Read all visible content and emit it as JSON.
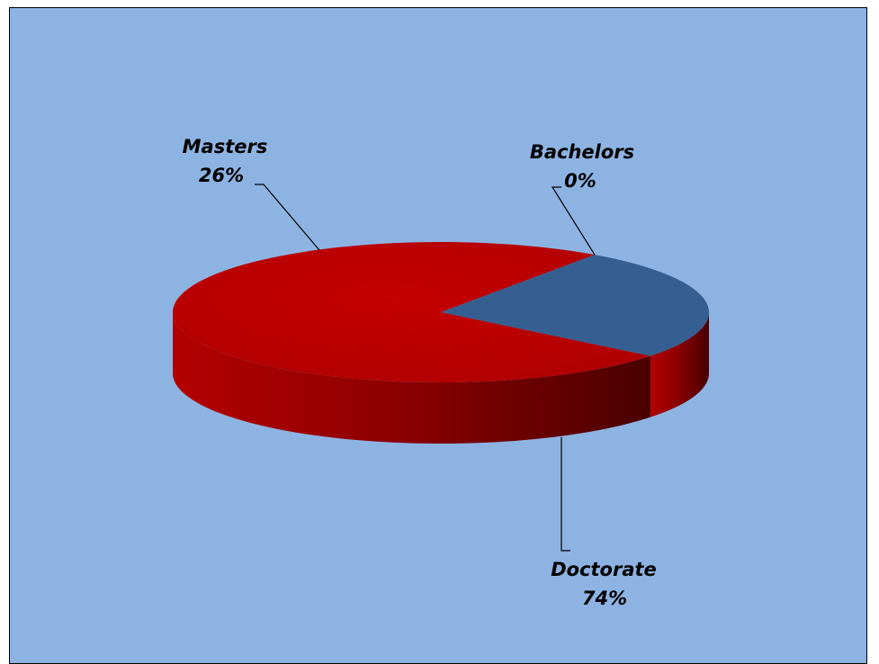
{
  "chart_data": {
    "type": "pie",
    "style": "3d",
    "title": "",
    "slices": [
      {
        "label": "Bachelors",
        "value": 0,
        "percent_label": "0%",
        "color": "#c00000"
      },
      {
        "label": "Masters",
        "value": 26,
        "percent_label": "26%",
        "color": "#365f91"
      },
      {
        "label": "Doctorate",
        "value": 74,
        "percent_label": "74%",
        "color": "#c00000"
      }
    ],
    "background_color": "#8db3e2",
    "legend": "none",
    "data_labels": "category and percentage with leader lines"
  }
}
